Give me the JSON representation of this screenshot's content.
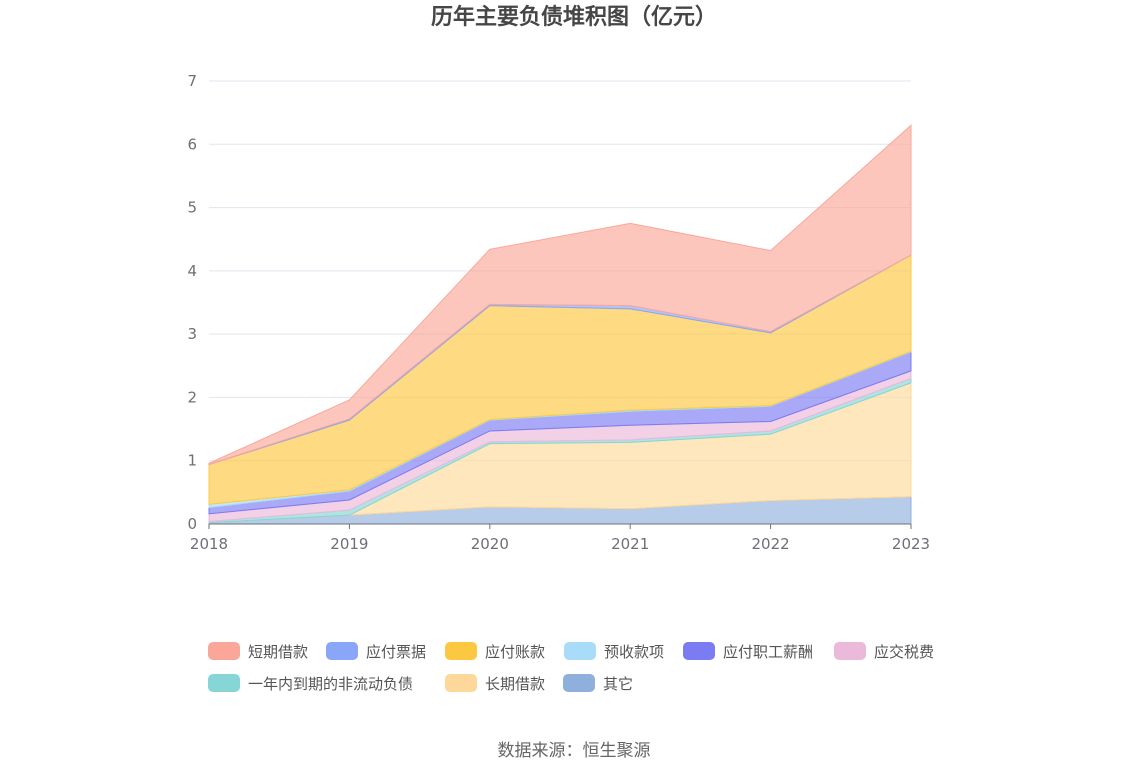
{
  "chart_data": {
    "type": "area",
    "stacked": true,
    "title": "历年主要负债堆积图（亿元）",
    "x": [
      "2018",
      "2019",
      "2020",
      "2021",
      "2022",
      "2023"
    ],
    "ylim": [
      0,
      7
    ],
    "yticks": [
      "0",
      "1",
      "2",
      "3",
      "4",
      "5",
      "6",
      "7"
    ],
    "grid": true,
    "legend_position": "bottom",
    "series": [
      {
        "name": "其它",
        "color": "#8fb0dd",
        "values": [
          0.02,
          0.14,
          0.27,
          0.24,
          0.37,
          0.43
        ]
      },
      {
        "name": "长期借款",
        "color": "#fdd89a",
        "values": [
          0.0,
          0.0,
          1.0,
          1.05,
          1.05,
          1.8
        ]
      },
      {
        "name": "一年内到期的非流动负债",
        "color": "#86d6d6",
        "values": [
          0.02,
          0.08,
          0.03,
          0.04,
          0.05,
          0.07
        ]
      },
      {
        "name": "应交税费",
        "color": "#ebb9da",
        "values": [
          0.12,
          0.16,
          0.17,
          0.23,
          0.15,
          0.12
        ]
      },
      {
        "name": "应付职工薪酬",
        "color": "#7b7bf2",
        "values": [
          0.1,
          0.14,
          0.17,
          0.22,
          0.24,
          0.3
        ]
      },
      {
        "name": "预收款项",
        "color": "#a8dcf8",
        "values": [
          0.05,
          0.02,
          0.01,
          0.02,
          0.01,
          0.01
        ]
      },
      {
        "name": "应付账款",
        "color": "#fdc841",
        "values": [
          0.63,
          1.1,
          1.8,
          1.6,
          1.15,
          1.52
        ]
      },
      {
        "name": "应付票据",
        "color": "#89a6f8",
        "values": [
          0.0,
          0.02,
          0.02,
          0.05,
          0.02,
          0.0
        ]
      },
      {
        "name": "短期借款",
        "color": "#faa79a",
        "values": [
          0.02,
          0.3,
          0.87,
          1.3,
          1.28,
          2.05
        ]
      }
    ],
    "legend_order": [
      "短期借款",
      "应付票据",
      "应付账款",
      "预收款项",
      "应付职工薪酬",
      "应交税费",
      "一年内到期的非流动负债",
      "长期借款",
      "其它"
    ]
  },
  "source_label": "数据来源：恒生聚源"
}
